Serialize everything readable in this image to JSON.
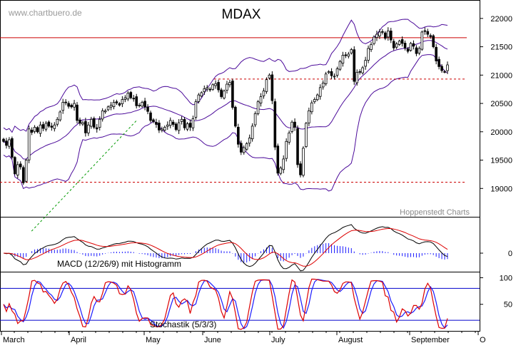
{
  "watermark": "www.chartbuero.de",
  "title": "MDAX",
  "source_label": "Hoppenstedt Charts",
  "colors": {
    "candle": "#000000",
    "bollinger": "#4b0a9a",
    "resistance": "#cc0000",
    "support_dashed": "#cc0000",
    "trendline": "#009900",
    "macd_line": "#000000",
    "macd_signal": "#dd0000",
    "histogram": "#1a1aff",
    "stoch_k": "#dd0000",
    "stoch_d": "#1a1aff",
    "stoch_levels": "#0000cc",
    "grid": "#000000"
  },
  "chart_data": [
    {
      "type": "candlestick",
      "title": "MDAX",
      "ylim": [
        18500,
        22300
      ],
      "y_ticks": [
        19000,
        19500,
        20000,
        20500,
        21000,
        21500,
        22000
      ],
      "x_labels": [
        "March",
        "April",
        "May",
        "June",
        "July",
        "August",
        "September",
        "O"
      ],
      "levels": {
        "resistance": 21660,
        "support_upper": 20930,
        "support_lower": 19110
      },
      "trendline": [
        [
          20,
          18750
        ],
        [
          32,
          19450
        ]
      ],
      "close": [
        19830,
        19760,
        19860,
        19550,
        19260,
        19420,
        19380,
        19100,
        19500,
        20050,
        19990,
        20080,
        20000,
        20120,
        20060,
        20150,
        20100,
        20080,
        20120,
        20220,
        20350,
        20520,
        20520,
        20450,
        20440,
        20500,
        20200,
        20150,
        20160,
        19980,
        20120,
        20220,
        20080,
        20050,
        20220,
        20370,
        20370,
        20440,
        20470,
        20520,
        20510,
        20470,
        20570,
        20600,
        20680,
        20600,
        20590,
        20460,
        20470,
        20520,
        20440,
        20360,
        20200,
        20180,
        20130,
        20030,
        20050,
        20080,
        20120,
        20200,
        20130,
        20040,
        20160,
        20220,
        20070,
        20140,
        20080,
        20230,
        20530,
        20650,
        20690,
        20760,
        20780,
        20740,
        20830,
        20850,
        20740,
        20620,
        20720,
        20840,
        20870,
        20430,
        20100,
        19780,
        19640,
        19720,
        19790,
        19890,
        20100,
        20320,
        20530,
        20620,
        20720,
        20920,
        21000,
        20550,
        19730,
        19270,
        19360,
        19520,
        19830,
        19980,
        20170,
        20080,
        19420,
        19240,
        19710,
        20150,
        20370,
        20510,
        20570,
        20650,
        20780,
        20860,
        21020,
        21060,
        20990,
        20980,
        21110,
        21240,
        21350,
        21350,
        21370,
        21450,
        20890,
        21050,
        21050,
        21130,
        21260,
        21470,
        21540,
        21670,
        21720,
        21760,
        21760,
        21650,
        21780,
        21620,
        21480,
        21550,
        21600,
        21560,
        21480,
        21420,
        21560,
        21510,
        21380,
        21470,
        21760,
        21770,
        21720,
        21680,
        21500,
        21250,
        21150,
        21080,
        21060,
        21180
      ]
    },
    {
      "type": "line",
      "title": "MACD (12/26/9) mit Histogramm",
      "ylim": [
        -1,
        1
      ],
      "y_ticks": [
        0
      ],
      "series_colors": [
        "#000000",
        "#dd0000"
      ]
    },
    {
      "type": "line",
      "title": "Stochastik (5/3/3)",
      "ylim": [
        0,
        110
      ],
      "y_ticks": [
        50,
        100
      ],
      "levels": [
        20,
        80
      ]
    }
  ]
}
